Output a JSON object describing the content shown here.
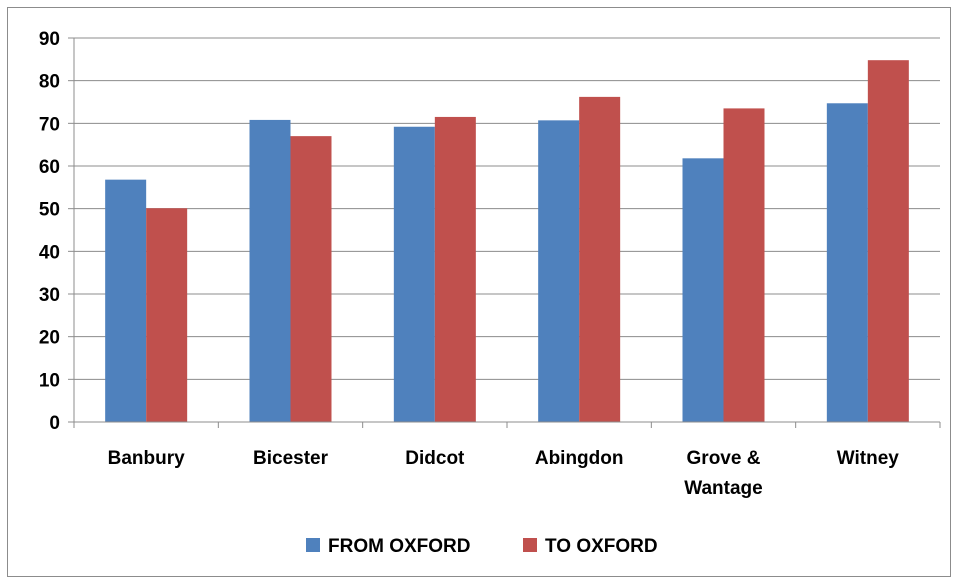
{
  "chart_data": {
    "type": "bar",
    "title": "",
    "xlabel": "",
    "ylabel": "",
    "categories": [
      [
        "Banbury"
      ],
      [
        "Bicester"
      ],
      [
        "Didcot"
      ],
      [
        "Abingdon"
      ],
      [
        "Grove &",
        "Wantage"
      ],
      [
        "Witney"
      ]
    ],
    "series": [
      {
        "name": "FROM OXFORD",
        "color": "#4f81bd",
        "values": [
          56.8,
          70.8,
          69.2,
          70.7,
          61.8,
          74.7
        ]
      },
      {
        "name": "TO OXFORD",
        "color": "#c0504d",
        "values": [
          50.1,
          67.0,
          71.5,
          76.2,
          73.5,
          84.8
        ]
      }
    ],
    "ylim": [
      0,
      90
    ],
    "yticks": [
      0,
      10,
      20,
      30,
      40,
      50,
      60,
      70,
      80,
      90
    ],
    "grid": true,
    "legend_position": "bottom"
  }
}
